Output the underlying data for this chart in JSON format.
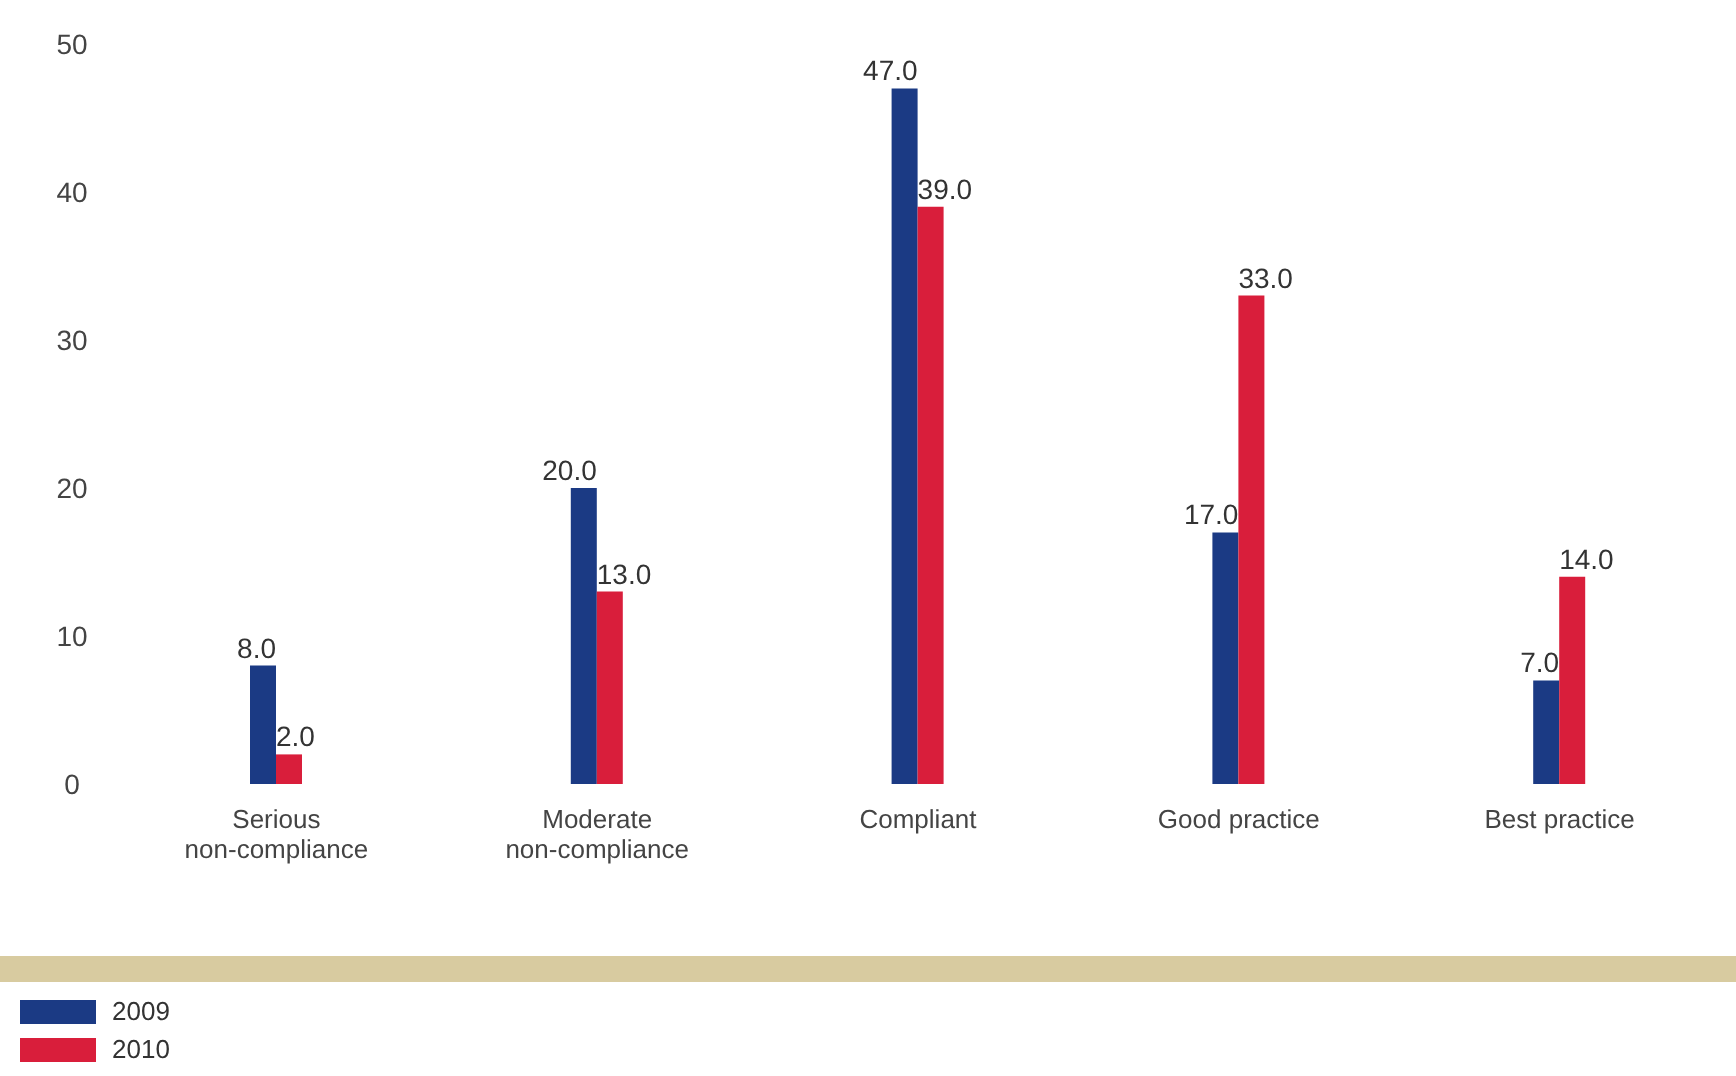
{
  "chart_data": {
    "type": "bar",
    "categories": [
      "Serious non-compliance",
      "Moderate non-compliance",
      "Compliant",
      "Good practice",
      "Best practice"
    ],
    "series": [
      {
        "name": "2009",
        "color": "#1b3a84",
        "values": [
          8,
          20,
          47,
          17,
          7
        ],
        "value_labels": [
          "8.0",
          "20.0",
          "47.0",
          "17.0",
          "7.0"
        ]
      },
      {
        "name": "2010",
        "color": "#d91e3b",
        "values": [
          2,
          13,
          39,
          33,
          14
        ],
        "value_labels": [
          "2.0",
          "13.0",
          "39.0",
          "33.0",
          "14.0"
        ]
      }
    ],
    "ylim": [
      0,
      50
    ],
    "yticks": [
      0,
      10,
      20,
      30,
      40,
      50
    ],
    "grid": false,
    "legend": "bottom left"
  }
}
